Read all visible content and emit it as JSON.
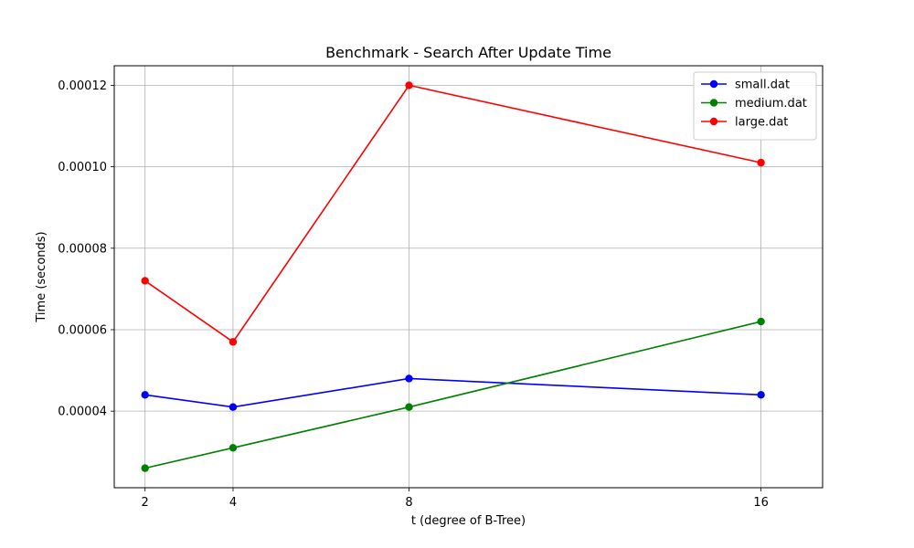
{
  "chart_data": {
    "type": "line",
    "title": "Benchmark - Search After Update Time",
    "xlabel": "t (degree of B-Tree)",
    "ylabel": "Time (seconds)",
    "x": [
      2,
      4,
      8,
      16
    ],
    "x_tick_labels": [
      "2",
      "4",
      "8",
      "16"
    ],
    "xlim": [
      1.3,
      17.4
    ],
    "ylim": [
      2.12e-05,
      0.0001248
    ],
    "y_ticks": [
      4e-05,
      6e-05,
      8e-05,
      0.0001,
      0.00012
    ],
    "y_tick_labels": [
      "0.00004",
      "0.00006",
      "0.00008",
      "0.00010",
      "0.00012"
    ],
    "grid": true,
    "legend_position": "top-right",
    "series": [
      {
        "name": "small.dat",
        "color": "#0000ff",
        "marker": "circle",
        "values": [
          4.4e-05,
          4.1e-05,
          4.8e-05,
          4.4e-05
        ]
      },
      {
        "name": "medium.dat",
        "color": "#008000",
        "marker": "circle",
        "values": [
          2.6e-05,
          3.1e-05,
          4.1e-05,
          6.2e-05
        ]
      },
      {
        "name": "large.dat",
        "color": "#ff0000",
        "marker": "circle",
        "values": [
          7.2e-05,
          5.7e-05,
          0.00012,
          0.000101
        ]
      }
    ]
  }
}
